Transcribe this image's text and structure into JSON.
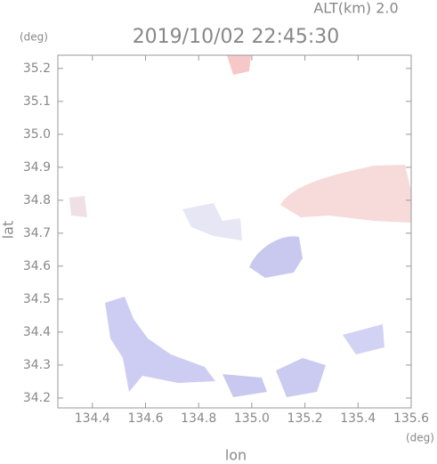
{
  "chart_data": {
    "type": "map",
    "title": "2019/10/02 22:45:30",
    "subtitle": "ALT(km) 2.0",
    "y_unit": "(deg)",
    "x_unit": "(deg)",
    "x_label": "lon",
    "y_label": "lat",
    "xlim": [
      134.27,
      135.6
    ],
    "ylim": [
      34.17,
      35.24
    ],
    "xticks": [
      134.4,
      134.6,
      134.8,
      {
        "value": 135,
        "label": "135.0"
      },
      135.2,
      135.4,
      135.6
    ],
    "yticks": [
      34.2,
      34.3,
      34.4,
      34.5,
      34.6,
      34.7,
      34.8,
      34.9,
      {
        "value": 35,
        "label": "35.0"
      },
      35.1,
      35.2
    ]
  }
}
